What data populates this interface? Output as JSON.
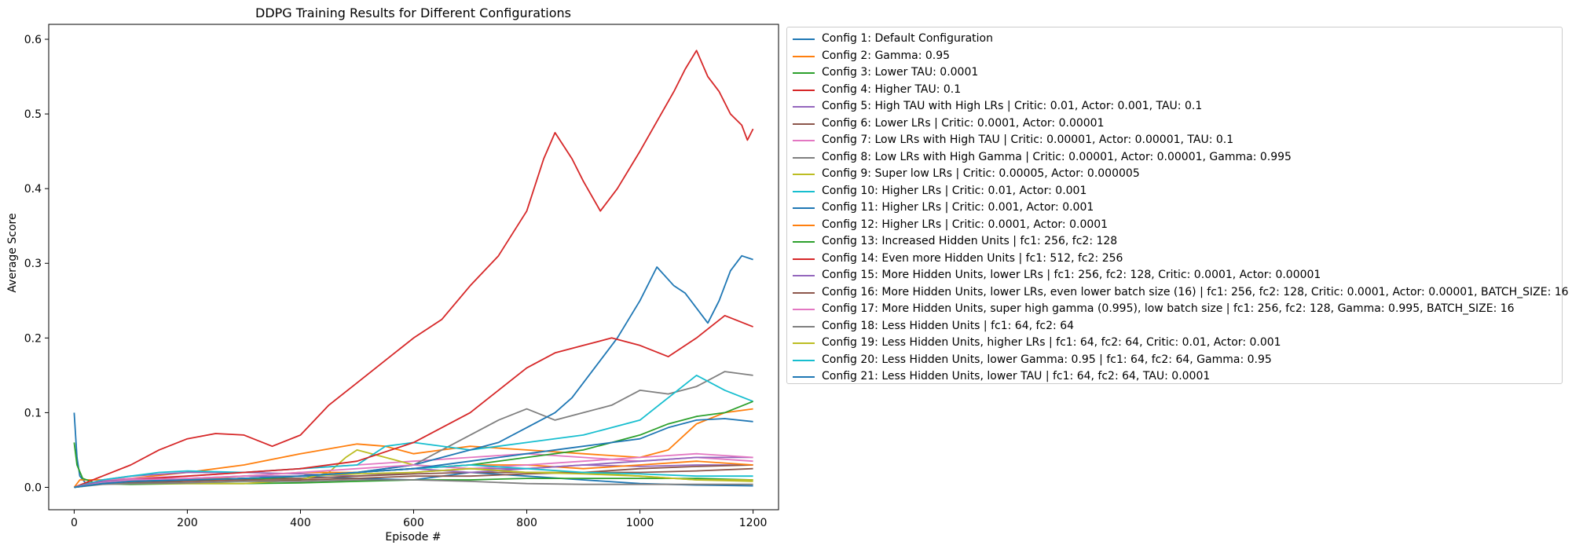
{
  "chart_data": {
    "type": "line",
    "title": "DDPG Training Results for Different Configurations",
    "xlabel": "Episode #",
    "ylabel": "Average Score",
    "xlim": [
      -45,
      1245
    ],
    "ylim": [
      -0.03,
      0.62
    ],
    "xticks": [
      0,
      200,
      400,
      600,
      800,
      1000,
      1200
    ],
    "yticks": [
      0.0,
      0.1,
      0.2,
      0.3,
      0.4,
      0.5,
      0.6
    ],
    "xtick_labels": [
      "0",
      "200",
      "400",
      "600",
      "800",
      "1000",
      "1200"
    ],
    "ytick_labels": [
      "0.0",
      "0.1",
      "0.2",
      "0.3",
      "0.4",
      "0.5",
      "0.6"
    ],
    "grid": false,
    "legend_position": "outside-right-top",
    "series": [
      {
        "name": "Config 1: Default Configuration",
        "color": "#1f77b4",
        "x": [
          0,
          5,
          10,
          20,
          60,
          100,
          150,
          200,
          300,
          400,
          500,
          600,
          700,
          800,
          900,
          1000,
          1100,
          1200
        ],
        "y": [
          0.1,
          0.04,
          0.015,
          0.006,
          0.005,
          0.006,
          0.008,
          0.01,
          0.012,
          0.015,
          0.012,
          0.01,
          0.02,
          0.015,
          0.01,
          0.005,
          0.003,
          0.002
        ]
      },
      {
        "name": "Config 2: Gamma: 0.95",
        "color": "#ff7f0e",
        "x": [
          0,
          10,
          50,
          100,
          200,
          300,
          400,
          500,
          550,
          600,
          650,
          700,
          800,
          900,
          1000,
          1050,
          1100,
          1150,
          1200
        ],
        "y": [
          0.0,
          0.01,
          0.01,
          0.012,
          0.02,
          0.03,
          0.045,
          0.058,
          0.055,
          0.045,
          0.05,
          0.055,
          0.05,
          0.045,
          0.04,
          0.05,
          0.085,
          0.1,
          0.105
        ]
      },
      {
        "name": "Config 3: Lower TAU: 0.0001",
        "color": "#2ca02c",
        "x": [
          0,
          5,
          15,
          40,
          100,
          200,
          300,
          400,
          500,
          600,
          700,
          800,
          900,
          1000,
          1100,
          1200
        ],
        "y": [
          0.06,
          0.03,
          0.012,
          0.005,
          0.004,
          0.005,
          0.005,
          0.006,
          0.008,
          0.01,
          0.01,
          0.012,
          0.012,
          0.012,
          0.012,
          0.01
        ]
      },
      {
        "name": "Config 4: Higher TAU: 0.1",
        "color": "#d62728",
        "x": [
          0,
          50,
          100,
          150,
          200,
          250,
          300,
          350,
          400,
          450,
          500,
          550,
          600,
          650,
          700,
          750,
          800,
          830,
          850,
          880,
          900,
          930,
          960,
          1000,
          1030,
          1060,
          1080,
          1100,
          1120,
          1140,
          1160,
          1180,
          1190,
          1200
        ],
        "y": [
          0.0,
          0.015,
          0.03,
          0.05,
          0.065,
          0.072,
          0.07,
          0.055,
          0.07,
          0.11,
          0.14,
          0.17,
          0.2,
          0.225,
          0.27,
          0.31,
          0.37,
          0.44,
          0.475,
          0.44,
          0.41,
          0.37,
          0.4,
          0.45,
          0.49,
          0.53,
          0.56,
          0.585,
          0.55,
          0.53,
          0.5,
          0.485,
          0.465,
          0.48
        ]
      },
      {
        "name": "Config 5: High TAU with High LRs | Critic: 0.01, Actor: 0.001, TAU: 0.1",
        "color": "#9467bd",
        "x": [
          0,
          50,
          100,
          200,
          300,
          400,
          500,
          600,
          700,
          800,
          900,
          1000,
          1100,
          1200
        ],
        "y": [
          0.0,
          0.01,
          0.015,
          0.02,
          0.02,
          0.018,
          0.015,
          0.02,
          0.025,
          0.025,
          0.03,
          0.028,
          0.03,
          0.03
        ]
      },
      {
        "name": "Config 6: Lower LRs | Critic: 0.0001, Actor: 0.00001",
        "color": "#8c564b",
        "x": [
          0,
          50,
          100,
          200,
          300,
          400,
          500,
          600,
          700,
          800,
          900,
          1000,
          1100,
          1200
        ],
        "y": [
          0.0,
          0.005,
          0.008,
          0.01,
          0.012,
          0.012,
          0.015,
          0.018,
          0.02,
          0.02,
          0.02,
          0.025,
          0.028,
          0.03
        ]
      },
      {
        "name": "Config 7: Low LRs with High TAU | Critic: 0.00001, Actor: 0.00001, TAU: 0.1",
        "color": "#e377c2",
        "x": [
          0,
          50,
          100,
          200,
          300,
          400,
          500,
          600,
          700,
          800,
          900,
          1000,
          1100,
          1200
        ],
        "y": [
          0.0,
          0.01,
          0.012,
          0.015,
          0.02,
          0.025,
          0.03,
          0.035,
          0.04,
          0.045,
          0.04,
          0.035,
          0.04,
          0.035
        ]
      },
      {
        "name": "Config 8: Low LRs with High Gamma | Critic: 0.00001, Actor: 0.00001, Gamma: 0.995",
        "color": "#7f7f7f",
        "x": [
          0,
          50,
          100,
          200,
          300,
          400,
          500,
          600,
          650,
          700,
          750,
          800,
          850,
          900,
          950,
          1000,
          1050,
          1100,
          1150,
          1200
        ],
        "y": [
          0.0,
          0.005,
          0.008,
          0.01,
          0.012,
          0.015,
          0.02,
          0.03,
          0.05,
          0.07,
          0.09,
          0.105,
          0.09,
          0.1,
          0.11,
          0.13,
          0.125,
          0.135,
          0.155,
          0.15
        ]
      },
      {
        "name": "Config 9: Super low LRs | Critic: 0.00005, Actor: 0.000005",
        "color": "#bcbd22",
        "x": [
          0,
          50,
          100,
          200,
          300,
          400,
          450,
          480,
          500,
          550,
          600,
          700,
          800,
          900,
          1000,
          1100,
          1200
        ],
        "y": [
          0.0,
          0.005,
          0.005,
          0.005,
          0.005,
          0.01,
          0.02,
          0.04,
          0.05,
          0.04,
          0.03,
          0.025,
          0.02,
          0.02,
          0.015,
          0.01,
          0.008
        ]
      },
      {
        "name": "Config 10: Higher LRs | Critic: 0.01, Actor: 0.001",
        "color": "#17becf",
        "x": [
          0,
          50,
          100,
          150,
          200,
          300,
          400,
          500,
          550,
          600,
          700,
          800,
          900,
          1000,
          1050,
          1100,
          1150,
          1200
        ],
        "y": [
          0.0,
          0.01,
          0.015,
          0.02,
          0.022,
          0.02,
          0.025,
          0.03,
          0.055,
          0.06,
          0.05,
          0.06,
          0.07,
          0.09,
          0.12,
          0.15,
          0.13,
          0.115
        ]
      },
      {
        "name": "Config 11: Higher LRs | Critic: 0.001, Actor: 0.001",
        "color": "#1f77b4",
        "x": [
          0,
          50,
          100,
          200,
          300,
          400,
          500,
          600,
          650,
          700,
          750,
          800,
          850,
          880,
          900,
          930,
          960,
          1000,
          1030,
          1060,
          1080,
          1100,
          1120,
          1140,
          1160,
          1180,
          1200
        ],
        "y": [
          0.0,
          0.005,
          0.008,
          0.01,
          0.012,
          0.015,
          0.02,
          0.03,
          0.04,
          0.05,
          0.06,
          0.08,
          0.1,
          0.12,
          0.14,
          0.17,
          0.2,
          0.25,
          0.295,
          0.27,
          0.26,
          0.24,
          0.22,
          0.25,
          0.29,
          0.31,
          0.305
        ]
      },
      {
        "name": "Config 12: Higher LRs | Critic: 0.0001, Actor: 0.0001",
        "color": "#ff7f0e",
        "x": [
          0,
          50,
          100,
          200,
          300,
          400,
          500,
          600,
          700,
          800,
          900,
          1000,
          1100,
          1200
        ],
        "y": [
          0.0,
          0.005,
          0.008,
          0.01,
          0.015,
          0.02,
          0.02,
          0.025,
          0.03,
          0.03,
          0.025,
          0.03,
          0.035,
          0.03
        ]
      },
      {
        "name": "Config 13: Increased Hidden Units | fc1: 256, fc2: 128",
        "color": "#2ca02c",
        "x": [
          0,
          50,
          100,
          200,
          300,
          400,
          500,
          600,
          700,
          800,
          900,
          1000,
          1050,
          1100,
          1150,
          1200
        ],
        "y": [
          0.0,
          0.005,
          0.008,
          0.01,
          0.01,
          0.015,
          0.02,
          0.025,
          0.03,
          0.04,
          0.05,
          0.07,
          0.085,
          0.095,
          0.1,
          0.115
        ]
      },
      {
        "name": "Config 14: Even more Hidden Units | fc1: 512, fc2: 256",
        "color": "#d62728",
        "x": [
          0,
          50,
          100,
          200,
          300,
          400,
          500,
          600,
          650,
          700,
          750,
          800,
          850,
          900,
          950,
          1000,
          1050,
          1100,
          1150,
          1200
        ],
        "y": [
          0.0,
          0.008,
          0.01,
          0.015,
          0.02,
          0.025,
          0.035,
          0.06,
          0.08,
          0.1,
          0.13,
          0.16,
          0.18,
          0.19,
          0.2,
          0.19,
          0.175,
          0.2,
          0.23,
          0.215
        ]
      },
      {
        "name": "Config 15: More Hidden Units, lower LRs | fc1: 256, fc2: 128, Critic: 0.0001, Actor: 0.00001",
        "color": "#9467bd",
        "x": [
          0,
          50,
          100,
          200,
          300,
          400,
          500,
          600,
          700,
          800,
          900,
          1000,
          1100,
          1200
        ],
        "y": [
          0.0,
          0.008,
          0.01,
          0.012,
          0.015,
          0.015,
          0.02,
          0.025,
          0.02,
          0.025,
          0.03,
          0.035,
          0.04,
          0.04
        ]
      },
      {
        "name": "Config 16: More Hidden Units, lower LRs, even lower batch size (16) | fc1: 256, fc2: 128, Critic: 0.0001, Actor: 0.00001, BATCH_SIZE: 16",
        "color": "#8c564b",
        "x": [
          0,
          50,
          100,
          200,
          300,
          400,
          500,
          600,
          700,
          800,
          900,
          1000,
          1100,
          1200
        ],
        "y": [
          0.0,
          0.005,
          0.006,
          0.008,
          0.01,
          0.01,
          0.012,
          0.015,
          0.015,
          0.018,
          0.02,
          0.02,
          0.022,
          0.025
        ]
      },
      {
        "name": "Config 17: More Hidden Units, super high gamma (0.995), low batch size | fc1: 256, fc2: 128, Gamma: 0.995, BATCH_SIZE: 16",
        "color": "#e377c2",
        "x": [
          0,
          50,
          100,
          200,
          300,
          400,
          500,
          600,
          700,
          800,
          900,
          1000,
          1100,
          1200
        ],
        "y": [
          0.0,
          0.006,
          0.01,
          0.012,
          0.015,
          0.02,
          0.025,
          0.03,
          0.025,
          0.03,
          0.035,
          0.04,
          0.045,
          0.04
        ]
      },
      {
        "name": "Config 18: Less Hidden Units | fc1: 64, fc2: 64",
        "color": "#7f7f7f",
        "x": [
          0,
          50,
          100,
          200,
          300,
          400,
          500,
          600,
          700,
          800,
          900,
          1000,
          1100,
          1200
        ],
        "y": [
          0.0,
          0.004,
          0.005,
          0.006,
          0.008,
          0.008,
          0.01,
          0.01,
          0.008,
          0.005,
          0.004,
          0.004,
          0.004,
          0.004
        ]
      },
      {
        "name": "Config 19: Less Hidden Units, higher LRs | fc1: 64, fc2: 64, Critic: 0.01, Actor: 0.001",
        "color": "#bcbd22",
        "x": [
          0,
          50,
          100,
          200,
          300,
          400,
          500,
          600,
          700,
          800,
          900,
          1000,
          1100,
          1200
        ],
        "y": [
          0.0,
          0.005,
          0.008,
          0.01,
          0.012,
          0.015,
          0.018,
          0.02,
          0.025,
          0.02,
          0.018,
          0.015,
          0.01,
          0.01
        ]
      },
      {
        "name": "Config 20: Less Hidden Units, lower Gamma: 0.95 | fc1: 64, fc2: 64, Gamma: 0.95",
        "color": "#17becf",
        "x": [
          0,
          50,
          100,
          200,
          300,
          400,
          500,
          600,
          700,
          800,
          900,
          1000,
          1100,
          1200
        ],
        "y": [
          0.0,
          0.005,
          0.008,
          0.01,
          0.012,
          0.015,
          0.02,
          0.025,
          0.03,
          0.025,
          0.02,
          0.018,
          0.015,
          0.015
        ]
      },
      {
        "name": "Config 21: Less Hidden Units, lower TAU | fc1: 64, fc2: 64, TAU: 0.0001",
        "color": "#1f77b4",
        "x": [
          0,
          50,
          100,
          200,
          300,
          400,
          500,
          600,
          700,
          800,
          900,
          1000,
          1050,
          1100,
          1150,
          1200
        ],
        "y": [
          0.0,
          0.005,
          0.008,
          0.01,
          0.012,
          0.015,
          0.02,
          0.025,
          0.035,
          0.045,
          0.055,
          0.065,
          0.08,
          0.09,
          0.092,
          0.088
        ]
      }
    ]
  }
}
